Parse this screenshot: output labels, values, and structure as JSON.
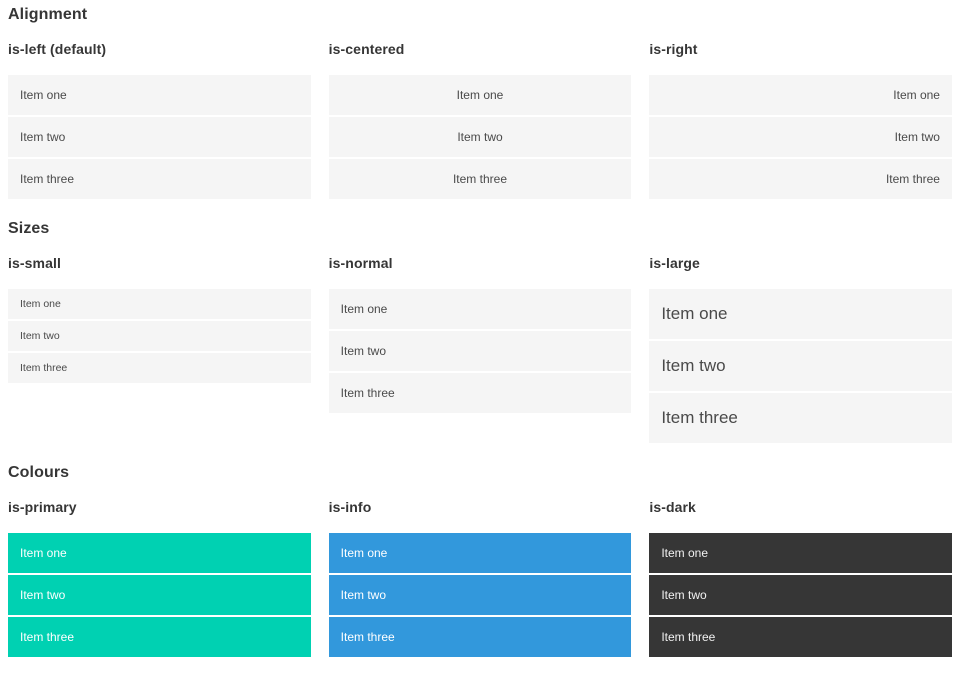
{
  "page": {
    "sections": [
      {
        "title": "Alignment",
        "columns": [
          {
            "heading": "is-left (default)",
            "items": [
              "Item one",
              "Item two",
              "Item three"
            ]
          },
          {
            "heading": "is-centered",
            "items": [
              "Item one",
              "Item two",
              "Item three"
            ]
          },
          {
            "heading": "is-right",
            "items": [
              "Item one",
              "Item two",
              "Item three"
            ]
          }
        ]
      },
      {
        "title": "Sizes",
        "columns": [
          {
            "heading": "is-small",
            "items": [
              "Item one",
              "Item two",
              "Item three"
            ]
          },
          {
            "heading": "is-normal",
            "items": [
              "Item one",
              "Item two",
              "Item three"
            ]
          },
          {
            "heading": "is-large",
            "items": [
              "Item one",
              "Item two",
              "Item three"
            ]
          }
        ]
      },
      {
        "title": "Colours",
        "columns": [
          {
            "heading": "is-primary",
            "items": [
              "Item one",
              "Item two",
              "Item three"
            ]
          },
          {
            "heading": "is-info",
            "items": [
              "Item one",
              "Item two",
              "Item three"
            ]
          },
          {
            "heading": "is-dark",
            "items": [
              "Item one",
              "Item two",
              "Item three"
            ]
          }
        ]
      }
    ]
  },
  "colors": {
    "primary": "#00d1b2",
    "info": "#3298dc",
    "dark": "#363636",
    "item_bg": "#f5f5f5",
    "item_text": "#4a4a4a",
    "heading_text": "#363636"
  }
}
